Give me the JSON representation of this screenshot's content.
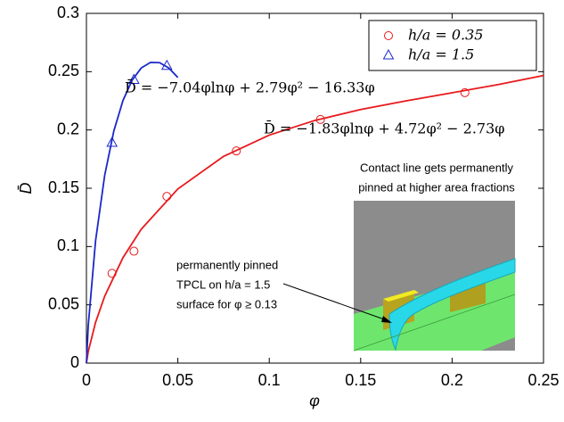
{
  "chart_data": {
    "type": "scatter",
    "xlabel": "φ",
    "ylabel": "D̄",
    "xlim": [
      0,
      0.25
    ],
    "ylim": [
      0,
      0.3
    ],
    "xticks": [
      0,
      0.05,
      0.1,
      0.15,
      0.2,
      0.25
    ],
    "yticks": [
      0,
      0.05,
      0.1,
      0.15,
      0.2,
      0.25,
      0.3
    ],
    "legend": "upper right",
    "series": [
      {
        "name": "h/a = 0.35",
        "type": "scatter",
        "marker": "circle",
        "color": "#e8191c",
        "x": [
          0.014,
          0.026,
          0.044,
          0.082,
          0.128,
          0.207
        ],
        "values": [
          0.077,
          0.096,
          0.143,
          0.182,
          0.209,
          0.232
        ]
      },
      {
        "name": "h/a = 1.5",
        "type": "scatter",
        "marker": "triangle",
        "color": "#1a28c8",
        "x": [
          0.014,
          0.026,
          0.044
        ],
        "values": [
          0.189,
          0.243,
          0.255
        ]
      },
      {
        "type": "line",
        "color": "#e8191c",
        "x": [
          0,
          0.001,
          0.005,
          0.01,
          0.02,
          0.03,
          0.05,
          0.075,
          0.1,
          0.125,
          0.15,
          0.175,
          0.2,
          0.225,
          0.25
        ],
        "values": [
          0,
          0.0099,
          0.035,
          0.0574,
          0.0905,
          0.1149,
          0.1494,
          0.1773,
          0.1956,
          0.2082,
          0.2175,
          0.225,
          0.2319,
          0.2389,
          0.2467
        ]
      },
      {
        "type": "line",
        "color": "#1a28c8",
        "x": [
          0,
          0.001,
          0.005,
          0.01,
          0.015,
          0.02,
          0.025,
          0.03,
          0.035,
          0.04,
          0.045,
          0.05
        ],
        "values": [
          0,
          0.0323,
          0.1049,
          0.1612,
          0.1992,
          0.2253,
          0.2427,
          0.2532,
          0.2579,
          0.2577,
          0.2532,
          0.245
        ]
      }
    ],
    "annotations": {
      "blue_fit": "D̄ = −7.04φlnφ + 2.79φ² − 16.33φ",
      "red_fit": "D̄ = −1.83φlnφ + 4.72φ² − 2.73φ",
      "inset_caption": [
        "Contact line gets permanently",
        "pinned at higher area fractions"
      ],
      "pinned_note": [
        "permanently pinned",
        "TPCL on h/a = 1.5",
        "surface for φ ≥ 0.13"
      ]
    }
  }
}
